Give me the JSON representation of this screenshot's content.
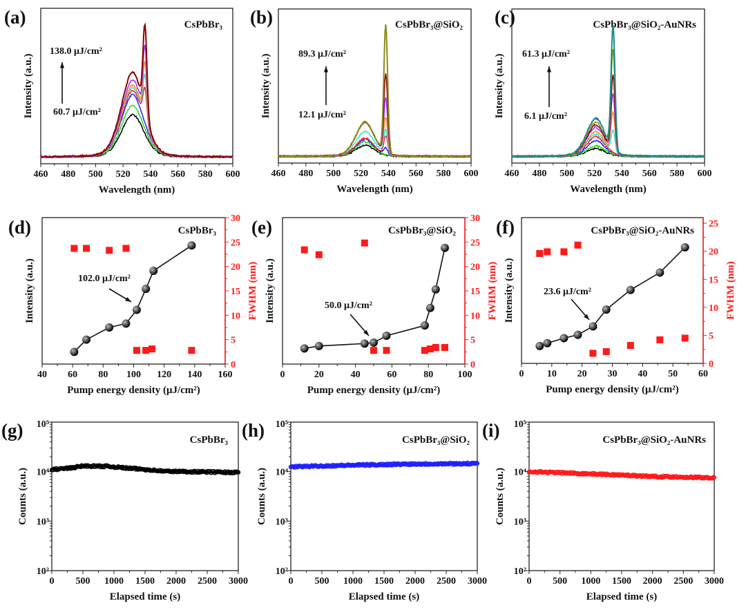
{
  "chart_data": [
    {
      "panel": "a",
      "type": "line",
      "label": "(a)",
      "title": "CsPbBr₃",
      "xlabel": "Wavelength (nm)",
      "ylabel": "Intensity (a.u.)",
      "xlim": [
        460,
        600
      ],
      "xticks": [
        460,
        480,
        500,
        520,
        540,
        560,
        580,
        600
      ],
      "ylim": [
        -0.05,
        1.12
      ],
      "annotation_high": "138.0 μJ/cm²",
      "annotation_low": "60.7 μJ/cm²",
      "broad_center": 527,
      "broad_width": 8.5,
      "narrow_center": 536,
      "series": [
        {
          "color": "#000000",
          "broad": 0.32,
          "peak": null
        },
        {
          "color": "#22dd22",
          "broad": 0.39,
          "peak": null
        },
        {
          "color": "#2020ff",
          "broad": 0.47,
          "peak": null
        },
        {
          "color": "#ff2020",
          "broad": 0.5,
          "peak": 0.52
        },
        {
          "color": "#30e0e0",
          "broad": 0.52,
          "peak": 0.62
        },
        {
          "color": "#ff8c1a",
          "broad": 0.54,
          "peak": 0.72
        },
        {
          "color": "#9b30ff",
          "broad": 0.58,
          "peak": 0.84
        },
        {
          "color": "#8b0000",
          "broad": 0.64,
          "peak": 1.0
        }
      ]
    },
    {
      "panel": "b",
      "type": "line",
      "label": "(b)",
      "title": "CsPbBr₃@SiO₂",
      "xlabel": "Wavelength (nm)",
      "ylabel": "Intensity (a.u.)",
      "xlim": [
        460,
        600
      ],
      "xticks": [
        460,
        480,
        500,
        520,
        540,
        560,
        580,
        600
      ],
      "ylim": [
        -0.05,
        1.12
      ],
      "annotation_high": "89.3 μJ/cm²",
      "annotation_low": "12.1 μJ/cm²",
      "broad_center": 523,
      "broad_width": 7,
      "narrow_center": 538,
      "series": [
        {
          "color": "#000000",
          "broad": 0.085,
          "peak": null
        },
        {
          "color": "#22dd22",
          "broad": 0.11,
          "peak": null
        },
        {
          "color": "#2020ff",
          "broad": 0.13,
          "peak": 0.07
        },
        {
          "color": "#ff2020",
          "broad": 0.14,
          "peak": 0.16
        },
        {
          "color": "#30e0e0",
          "broad": 0.19,
          "peak": 0.21
        },
        {
          "color": "#ff8c1a",
          "broad": 0.26,
          "peak": 0.3
        },
        {
          "color": "#9b30ff",
          "broad": 0.26,
          "peak": 0.45
        },
        {
          "color": "#8b0000",
          "broad": 0.26,
          "peak": 0.63
        },
        {
          "color": "#8b8b1a",
          "broad": 0.26,
          "peak": 1.0
        }
      ]
    },
    {
      "panel": "c",
      "type": "line",
      "label": "(c)",
      "title": "CsPbBr₃@SiO₂-AuNRs",
      "xlabel": "Wavelength (nm)",
      "ylabel": "Intensity (a.u.)",
      "xlim": [
        460,
        600
      ],
      "xticks": [
        460,
        480,
        500,
        520,
        540,
        560,
        580,
        600
      ],
      "ylim": [
        -0.05,
        1.12
      ],
      "annotation_high": "61.3 μJ/cm²",
      "annotation_low": "6.1 μJ/cm²",
      "broad_center": 521,
      "broad_width": 7,
      "narrow_center": 533.5,
      "series": [
        {
          "color": "#000000",
          "broad": 0.06,
          "peak": null
        },
        {
          "color": "#22dd22",
          "broad": 0.08,
          "peak": null
        },
        {
          "color": "#2020ff",
          "broad": 0.12,
          "peak": null
        },
        {
          "color": "#ff2020",
          "broad": 0.15,
          "peak": null
        },
        {
          "color": "#30e0e0",
          "broad": 0.17,
          "peak": 0.2
        },
        {
          "color": "#ff8c1a",
          "broad": 0.19,
          "peak": 0.34
        },
        {
          "color": "#9b30ff",
          "broad": 0.22,
          "peak": 0.48
        },
        {
          "color": "#8b0000",
          "broad": 0.24,
          "peak": 0.62
        },
        {
          "color": "#8b8b1a",
          "broad": 0.26,
          "peak": 0.81
        },
        {
          "color": "#1a8b8b",
          "broad": 0.29,
          "peak": 1.0
        }
      ]
    },
    {
      "panel": "d",
      "type": "scatter",
      "label": "(d)",
      "title": "CsPbBr₃",
      "xlabel": "Pump energy density (μJ/cm²)",
      "ylabel": "Intensity (a.u.)",
      "y2label": "FWHM (nm)",
      "xlim": [
        40,
        160
      ],
      "xticks": [
        40,
        60,
        80,
        100,
        120,
        140,
        160
      ],
      "y2lim": [
        0,
        30
      ],
      "y2ticks": [
        0,
        5,
        10,
        15,
        20,
        25,
        30
      ],
      "annotation": "102.0 μJ/cm²",
      "threshold": 102.0,
      "intensity": {
        "x": [
          61,
          69,
          84,
          95,
          102,
          108,
          113,
          138
        ],
        "y_relative": [
          2.5,
          5.0,
          7.5,
          8.3,
          11.1,
          15.4,
          19.1,
          24.3
        ]
      },
      "fwhm": {
        "x": [
          61,
          69,
          84,
          95,
          102,
          108,
          112,
          138
        ],
        "y": [
          23.7,
          23.7,
          23.3,
          23.7,
          2.8,
          2.8,
          3.1,
          2.8
        ]
      }
    },
    {
      "panel": "e",
      "type": "scatter",
      "label": "(e)",
      "title": "CsPbBr₃@SiO₂",
      "xlabel": "Pump energy density (μJ/cm²)",
      "ylabel": "Intensity (a.u.)",
      "y2label": "FWHM (nm)",
      "xlim": [
        0,
        100
      ],
      "xticks": [
        0,
        20,
        40,
        60,
        80,
        100
      ],
      "y2lim": [
        0,
        30
      ],
      "y2ticks": [
        0,
        5,
        10,
        15,
        20,
        25,
        30
      ],
      "annotation": "50.0 μJ/cm²",
      "threshold": 50.0,
      "intensity": {
        "x": [
          12,
          20,
          45,
          50,
          57,
          78,
          81,
          84,
          89
        ],
        "y_relative": [
          3.2,
          3.7,
          4.2,
          4.4,
          5.8,
          7.9,
          11.5,
          15.3,
          23.8
        ]
      },
      "fwhm": {
        "x": [
          12,
          20,
          45,
          50,
          57,
          78,
          81,
          84,
          89
        ],
        "y": [
          23.4,
          22.4,
          24.8,
          2.8,
          2.8,
          2.8,
          3.1,
          3.4,
          3.4
        ]
      }
    },
    {
      "panel": "f",
      "type": "scatter",
      "label": "(f)",
      "title": "CsPbBr₃@SiO₂-AuNRs",
      "xlabel": "Pump energy density (μJ/cm²)",
      "ylabel": "Intensity (a.u.)",
      "y2label": "FWHM (nm)",
      "xlim": [
        0,
        60
      ],
      "xticks": [
        0,
        10,
        20,
        30,
        40,
        50,
        60
      ],
      "y2lim": [
        0,
        26
      ],
      "y2ticks": [
        0,
        5,
        10,
        15,
        20,
        25
      ],
      "annotation": "23.6 μJ/cm²",
      "threshold": 23.6,
      "intensity": {
        "x": [
          6,
          8.5,
          14,
          18.6,
          23.6,
          28,
          36,
          45.7,
          54
        ],
        "y_relative": [
          3.1,
          3.6,
          4.5,
          5.1,
          6.6,
          9.6,
          13.1,
          16.2,
          20.7
        ]
      },
      "fwhm": {
        "x": [
          6,
          8.5,
          14,
          18.6,
          23.6,
          28,
          36,
          45.7,
          54
        ],
        "y": [
          19.6,
          19.9,
          19.9,
          21.1,
          1.8,
          2.1,
          3.2,
          4.2,
          4.5
        ]
      }
    },
    {
      "panel": "g",
      "type": "scatter",
      "label": "(g)",
      "title": "CsPbBr₃",
      "xlabel": "Elapsed time (s)",
      "ylabel": "Counts (a.u.)",
      "color": "#000000",
      "xlim": [
        0,
        3000
      ],
      "xticks": [
        0,
        500,
        1000,
        1500,
        2000,
        2500,
        3000
      ],
      "ylog": [
        2,
        5
      ],
      "ytick_labels": [
        "10²",
        "10³",
        "10⁴",
        "10⁵"
      ],
      "trend": {
        "t": [
          0,
          300,
          500,
          900,
          1200,
          1600,
          1800,
          3000
        ],
        "counts": [
          11000,
          11800,
          13000,
          12800,
          11800,
          10800,
          10200,
          9600
        ]
      }
    },
    {
      "panel": "h",
      "type": "scatter",
      "label": "(h)",
      "title": "CsPbBr₃@SiO₂",
      "xlabel": "Elapsed time (s)",
      "ylabel": "Counts (a.u.)",
      "color": "#1f1fff",
      "xlim": [
        0,
        3000
      ],
      "xticks": [
        0,
        500,
        1000,
        1500,
        2000,
        2500,
        3000
      ],
      "ylog": [
        2,
        5
      ],
      "ytick_labels": [
        "10²",
        "10³",
        "10⁴",
        "10⁵"
      ],
      "trend": {
        "t": [
          0,
          1000,
          2000,
          3000
        ],
        "counts": [
          12500,
          13500,
          14300,
          14500
        ]
      }
    },
    {
      "panel": "i",
      "type": "scatter",
      "label": "(i)",
      "title": "CsPbBr₃@SiO₂-AuNRs",
      "xlabel": "Elapsed time (s)",
      "ylabel": "Counts (a.u.)",
      "color": "#ff1a1a",
      "xlim": [
        0,
        3000
      ],
      "xticks": [
        0,
        500,
        1000,
        1500,
        2000,
        2500,
        3000
      ],
      "ylog": [
        2,
        5
      ],
      "ytick_labels": [
        "10²",
        "10³",
        "10⁴",
        "10⁵"
      ],
      "trend": {
        "t": [
          0,
          1000,
          2000,
          3000
        ],
        "counts": [
          10000,
          9000,
          8000,
          7500
        ]
      }
    }
  ]
}
